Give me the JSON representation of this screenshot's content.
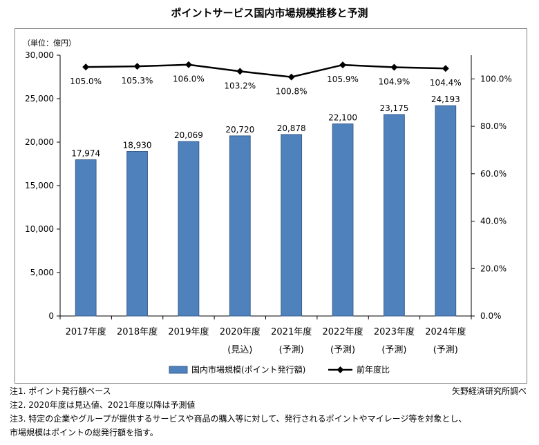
{
  "title": "ポイントサービス国内市場規模推移と予測",
  "unit_label": "（単位：億円）",
  "legend": {
    "bar_label": "国内市場規模(ポイント発行額)",
    "line_label": "前年度比"
  },
  "colors": {
    "bar": "#4f81bd",
    "bar_stroke": "#385d8a",
    "line": "#000000"
  },
  "chart_data": {
    "type": "bar",
    "categories": [
      "2017年度",
      "2018年度",
      "2019年度",
      "2020年度",
      "2021年度",
      "2022年度",
      "2023年度",
      "2024年度"
    ],
    "category_sublabels": [
      "",
      "",
      "",
      "(見込)",
      "(予測)",
      "(予測)",
      "(予測)",
      "(予測)"
    ],
    "series": [
      {
        "name": "国内市場規模(ポイント発行額)",
        "type": "bar",
        "axis": "left",
        "values": [
          17974,
          18930,
          20069,
          20720,
          20878,
          22100,
          23175,
          24193
        ],
        "labels": [
          "17,974",
          "18,930",
          "20,069",
          "20,720",
          "20,878",
          "22,100",
          "23,175",
          "24,193"
        ]
      },
      {
        "name": "前年度比",
        "type": "line",
        "axis": "right",
        "values": [
          105.0,
          105.3,
          106.0,
          103.2,
          100.8,
          105.9,
          104.9,
          104.4
        ],
        "labels": [
          "105.0%",
          "105.3%",
          "106.0%",
          "103.2%",
          "100.8%",
          "105.9%",
          "104.9%",
          "104.4%"
        ]
      }
    ],
    "y_left": {
      "min": 0,
      "max": 30000,
      "ticks": [
        0,
        5000,
        10000,
        15000,
        20000,
        25000,
        30000
      ],
      "tick_labels": [
        "0",
        "5,000",
        "10,000",
        "15,000",
        "20,000",
        "25,000",
        "30,000"
      ]
    },
    "y_right": {
      "min": 0,
      "max": 110,
      "ticks": [
        0,
        20,
        40,
        60,
        80,
        100
      ],
      "tick_labels": [
        "0.0%",
        "20.0%",
        "40.0%",
        "60.0%",
        "80.0%",
        "100.0%"
      ]
    },
    "grid": false,
    "legend_position": "bottom"
  },
  "notes": [
    "注1.  ポイント発行額ベース",
    "注2.  2020年度は見込値、2021年度以降は予測値",
    "注3.  特定の企業やグループが提供するサービスや商品の購入等に対して、発行されるポイントやマイレージ等を対象とし、",
    "市場規模はポイントの総発行額を指す。"
  ],
  "credit": "矢野経済研究所調べ"
}
